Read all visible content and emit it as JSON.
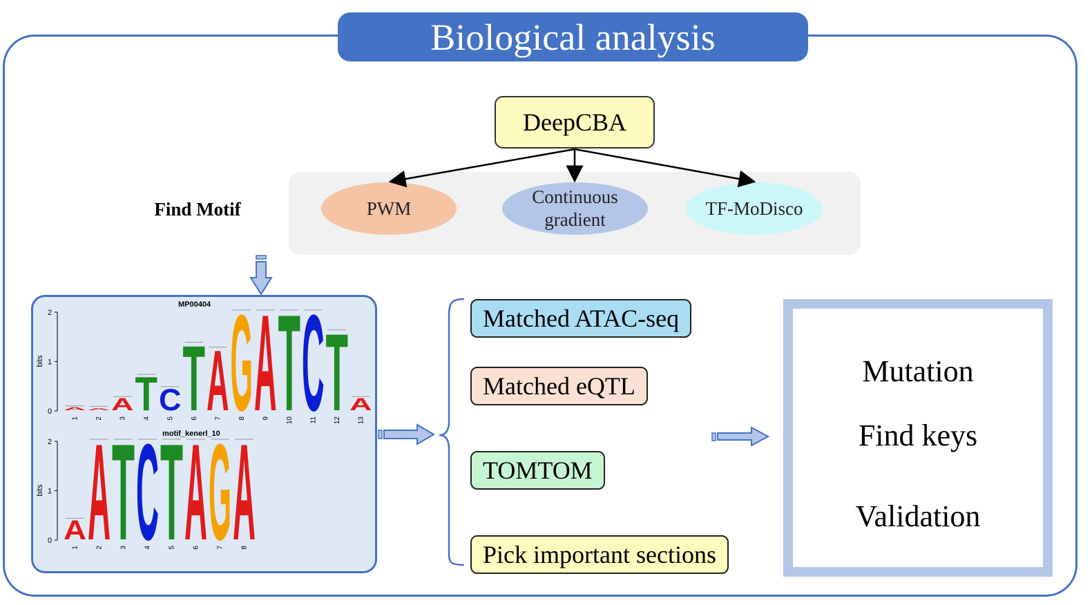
{
  "title": "Biological analysis",
  "model": "DeepCBA",
  "find_motif_label": "Find Motif",
  "methods": [
    {
      "label": "PWM",
      "color": "#f4c4a5"
    },
    {
      "label_line1": "Continuous",
      "label_line2": "gradient",
      "color": "#b4c6e7"
    },
    {
      "label": "TF-MoDisco",
      "color": "#ccf7f8"
    }
  ],
  "logos": {
    "top_title": "MP00404",
    "bottom_title": "motif_kenerl_10",
    "y_axis_label": "bits",
    "top_positions": [
      "1",
      "2",
      "3",
      "4",
      "5",
      "6",
      "7",
      "8",
      "9",
      "10",
      "11",
      "12",
      "13"
    ],
    "top_main_letters": [
      "A",
      "A",
      "A",
      "T",
      "C",
      "T",
      "A",
      "G",
      "A",
      "T",
      "C",
      "T",
      "A"
    ],
    "top_yticks": [
      "0",
      "1",
      "2"
    ],
    "bottom_positions": [
      "1",
      "2",
      "3",
      "4",
      "5",
      "6",
      "7",
      "8"
    ],
    "bottom_main_letters": [
      "A",
      "A",
      "T",
      "C",
      "T",
      "A",
      "G",
      "A"
    ],
    "bottom_yticks": [
      "0",
      "1",
      "2"
    ]
  },
  "analyses": [
    {
      "label": "Matched ATAC-seq",
      "color": "#a9ddf3"
    },
    {
      "label": "Matched eQTL",
      "color": "#fbe1d3"
    },
    {
      "label": "TOMTOM",
      "color": "#c6f5d3"
    },
    {
      "label": "Pick important sections",
      "color": "#fdfbbe"
    }
  ],
  "results": [
    "Mutation",
    "Find keys",
    "Validation"
  ],
  "colors": {
    "accent": "#4472c4",
    "arrow_fill": "#b4c6e7",
    "A": "#e01b1b",
    "C": "#0a1fd4",
    "G": "#f5a200",
    "T": "#1d8a24"
  }
}
